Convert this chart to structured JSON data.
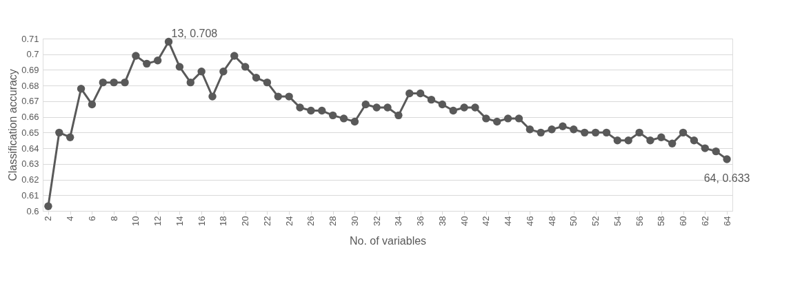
{
  "chart_data": {
    "type": "line",
    "xlabel": "No. of variables",
    "ylabel": "Classification accuracy",
    "x": [
      2,
      3,
      4,
      5,
      6,
      7,
      8,
      9,
      10,
      11,
      12,
      13,
      14,
      15,
      16,
      17,
      18,
      19,
      20,
      21,
      22,
      23,
      24,
      25,
      26,
      27,
      28,
      29,
      30,
      31,
      32,
      33,
      34,
      35,
      36,
      37,
      38,
      39,
      40,
      41,
      42,
      43,
      44,
      45,
      46,
      47,
      48,
      49,
      50,
      51,
      52,
      53,
      54,
      55,
      56,
      57,
      58,
      59,
      60,
      61,
      62,
      63,
      64
    ],
    "series": [
      {
        "color": "#595959",
        "values": [
          0.603,
          0.65,
          0.647,
          0.678,
          0.668,
          0.682,
          0.682,
          0.682,
          0.699,
          0.694,
          0.696,
          0.708,
          0.692,
          0.682,
          0.689,
          0.673,
          0.689,
          0.699,
          0.692,
          0.685,
          0.682,
          0.673,
          0.673,
          0.666,
          0.664,
          0.664,
          0.661,
          0.659,
          0.657,
          0.668,
          0.666,
          0.666,
          0.661,
          0.675,
          0.675,
          0.671,
          0.668,
          0.664,
          0.666,
          0.666,
          0.659,
          0.657,
          0.659,
          0.659,
          0.652,
          0.65,
          0.652,
          0.654,
          0.652,
          0.65,
          0.65,
          0.65,
          0.645,
          0.645,
          0.65,
          0.645,
          0.647,
          0.643,
          0.65,
          0.645,
          0.64,
          0.638,
          0.633
        ]
      }
    ],
    "xlim": [
      1.5,
      64.5
    ],
    "xticks": [
      2,
      4,
      6,
      8,
      10,
      12,
      14,
      16,
      18,
      20,
      22,
      24,
      26,
      28,
      30,
      32,
      34,
      36,
      38,
      40,
      42,
      44,
      46,
      48,
      50,
      52,
      54,
      56,
      58,
      60,
      62,
      64
    ],
    "ylim": [
      0.6,
      0.71
    ],
    "yticks": [
      0.6,
      0.61,
      0.62,
      0.63,
      0.64,
      0.65,
      0.66,
      0.67,
      0.68,
      0.69,
      0.7,
      0.71
    ],
    "annotations": [
      {
        "text": "13, 0.708",
        "x": 13,
        "y": 0.708
      },
      {
        "text": "64, 0.633",
        "x": 64,
        "y": 0.633
      }
    ],
    "grid": "y",
    "marker": "circle",
    "line_style": "solid",
    "legend": false
  }
}
